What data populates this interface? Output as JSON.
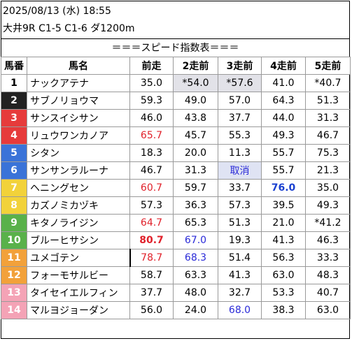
{
  "header": {
    "date": "2025/08/13 (水) 18:55",
    "race": "大井9R C1-5 C1-6 ダ1200m",
    "caption": "＝＝＝スピード指数表＝＝＝"
  },
  "columns": [
    "馬番",
    "馬名",
    "前走",
    "2走前",
    "3走前",
    "4走前",
    "5走前"
  ],
  "rows": [
    {
      "num": "1",
      "name": "ナックアテナ",
      "v": [
        "35.0",
        "*54.0",
        "*57.6",
        "41.0",
        "*40.7"
      ]
    },
    {
      "num": "2",
      "name": "サブノリョウマ",
      "v": [
        "59.3",
        "49.0",
        "57.0",
        "64.3",
        "51.3"
      ]
    },
    {
      "num": "3",
      "name": "サンスイシサン",
      "v": [
        "46.0",
        "43.8",
        "37.7",
        "44.0",
        "31.3"
      ]
    },
    {
      "num": "4",
      "name": "リュウワンカノア",
      "v": [
        "65.7",
        "45.7",
        "55.3",
        "49.3",
        "46.7"
      ]
    },
    {
      "num": "5",
      "name": "シタン",
      "v": [
        "18.3",
        "20.0",
        "11.3",
        "55.7",
        "75.3"
      ]
    },
    {
      "num": "6",
      "name": "サンサンラルーナ",
      "v": [
        "46.7",
        "31.3",
        "取消",
        "55.7",
        "21.3"
      ]
    },
    {
      "num": "7",
      "name": "ヘニングセン",
      "v": [
        "60.7",
        "59.7",
        "33.7",
        "76.0",
        "35.0"
      ]
    },
    {
      "num": "8",
      "name": "カズノミカヅキ",
      "v": [
        "57.3",
        "36.3",
        "57.3",
        "39.5",
        "49.3"
      ]
    },
    {
      "num": "9",
      "name": "キタノライジン",
      "v": [
        "64.7",
        "65.3",
        "51.3",
        "21.0",
        "*41.2"
      ]
    },
    {
      "num": "10",
      "name": "ブルーヒサシン",
      "v": [
        "80.7",
        "67.0",
        "19.3",
        "41.3",
        "46.3"
      ]
    },
    {
      "num": "11",
      "name": "ユメゴテン",
      "v": [
        "78.7",
        "68.3",
        "51.4",
        "56.3",
        "33.3"
      ]
    },
    {
      "num": "12",
      "name": "フォーモサルビー",
      "v": [
        "58.7",
        "63.3",
        "41.3",
        "63.0",
        "48.3"
      ]
    },
    {
      "num": "13",
      "name": "タイセイエルフィン",
      "v": [
        "37.7",
        "48.0",
        "32.7",
        "53.3",
        "40.7"
      ]
    },
    {
      "num": "14",
      "name": "マルヨジョーダン",
      "v": [
        "56.0",
        "24.0",
        "68.0",
        "38.3",
        "63.0"
      ]
    }
  ]
}
